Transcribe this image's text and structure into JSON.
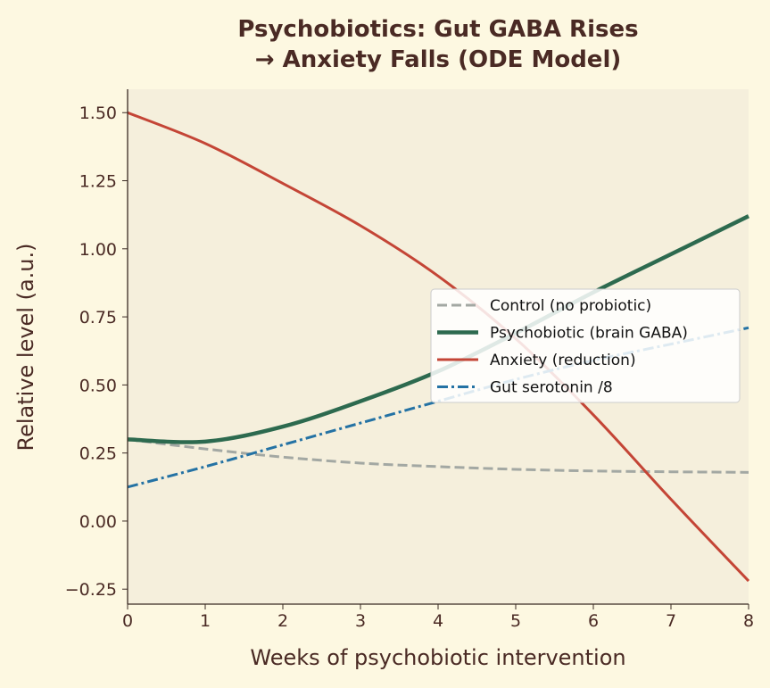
{
  "chart_data": {
    "type": "line",
    "title": "Psychobiotics: Gut GABA Rises\n→ Anxiety Falls (ODE Model)",
    "xlabel": "Weeks of psychobiotic intervention",
    "ylabel": "Relative level (a.u.)",
    "xlim": [
      0,
      8
    ],
    "ylim": [
      -0.305,
      1.586
    ],
    "xticks": [
      0,
      1,
      2,
      3,
      4,
      5,
      6,
      7,
      8
    ],
    "xtick_labels": [
      "0",
      "1",
      "2",
      "3",
      "4",
      "5",
      "6",
      "7",
      "8"
    ],
    "yticks": [
      -0.25,
      0,
      0.25,
      0.5,
      0.75,
      1.0,
      1.25,
      1.5
    ],
    "ytick_labels": [
      "−0.25",
      "0.00",
      "0.25",
      "0.50",
      "0.75",
      "1.00",
      "1.25",
      "1.50"
    ],
    "grid": false,
    "legend_placement": "center-right",
    "x": [
      0,
      1,
      2,
      3,
      4,
      5,
      6,
      7,
      8
    ],
    "series": [
      {
        "name": "Control (no probiotic)",
        "color": "#a3a8a3",
        "style": "dashed",
        "values": [
          0.3,
          0.265,
          0.235,
          0.213,
          0.2,
          0.19,
          0.184,
          0.181,
          0.179
        ]
      },
      {
        "name": "Psychobiotic (brain GABA)",
        "color": "#2d6a4f",
        "style": "solid-thick",
        "values": [
          0.3,
          0.292,
          0.347,
          0.44,
          0.55,
          0.69,
          0.84,
          0.98,
          1.12
        ]
      },
      {
        "name": "Anxiety (reduction)",
        "color": "#c44536",
        "style": "solid",
        "values": [
          1.5,
          1.387,
          1.24,
          1.085,
          0.9,
          0.67,
          0.39,
          0.08,
          -0.22
        ]
      },
      {
        "name": "Gut serotonin /8",
        "color": "#2472a4",
        "style": "dashdot",
        "values": [
          0.125,
          0.2,
          0.28,
          0.36,
          0.44,
          0.52,
          0.59,
          0.65,
          0.71
        ]
      }
    ]
  }
}
